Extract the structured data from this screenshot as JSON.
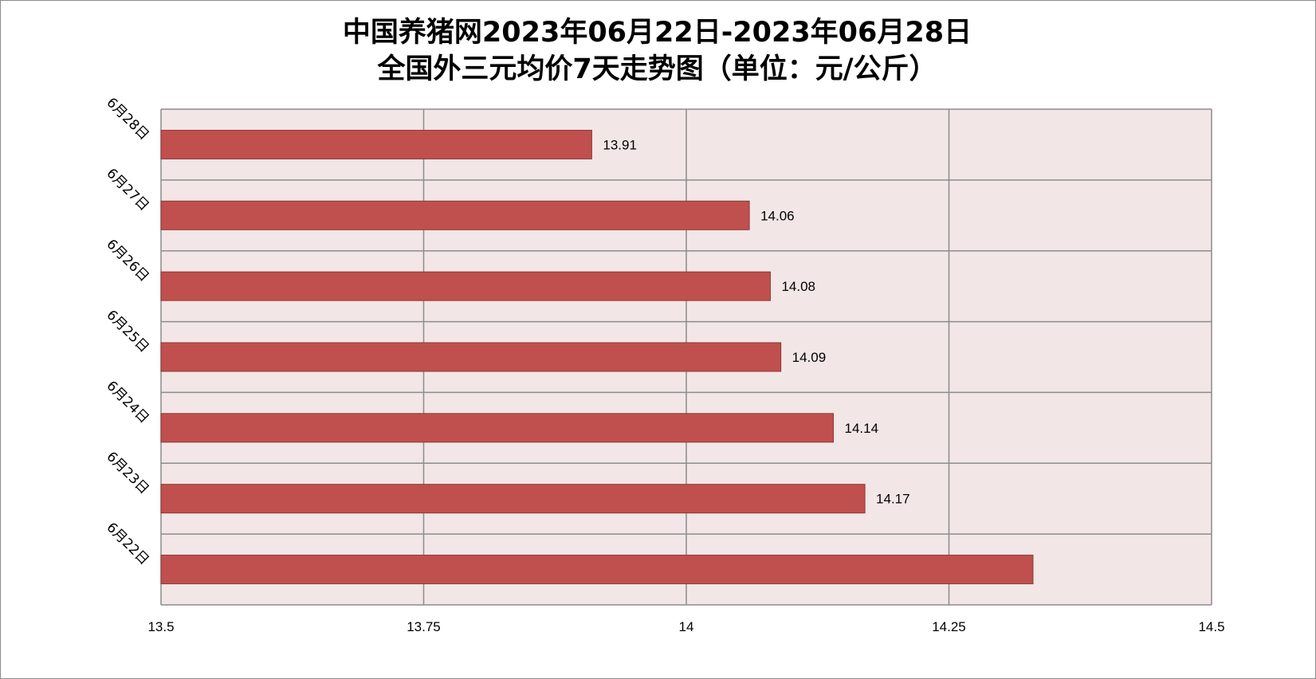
{
  "chart_data": {
    "type": "bar",
    "orientation": "horizontal",
    "title_line1": "中国养猪网2023年06月22日-2023年06月28日",
    "title_line2": "全国外三元均价7天走势图（单位：元/公斤）",
    "categories": [
      "6月28日",
      "6月27日",
      "6月26日",
      "6月25日",
      "6月24日",
      "6月23日",
      "6月22日"
    ],
    "values": [
      13.91,
      14.06,
      14.08,
      14.09,
      14.14,
      14.17,
      14.33
    ],
    "data_labels": [
      "13.91",
      "14.06",
      "14.08",
      "14.09",
      "14.14",
      "14.17",
      ""
    ],
    "xlim": [
      13.5,
      14.5
    ],
    "xticks": [
      13.5,
      13.75,
      14,
      14.25,
      14.5
    ],
    "xtick_labels": [
      "13.5",
      "13.75",
      "14",
      "14.25",
      "14.5"
    ],
    "grid": true,
    "legend": "none",
    "colors": {
      "bar_fill": "#c0504d",
      "bar_stroke": "#8c3836",
      "plot_background": "#f2e6e6",
      "grid": "#8c8c8c"
    }
  }
}
